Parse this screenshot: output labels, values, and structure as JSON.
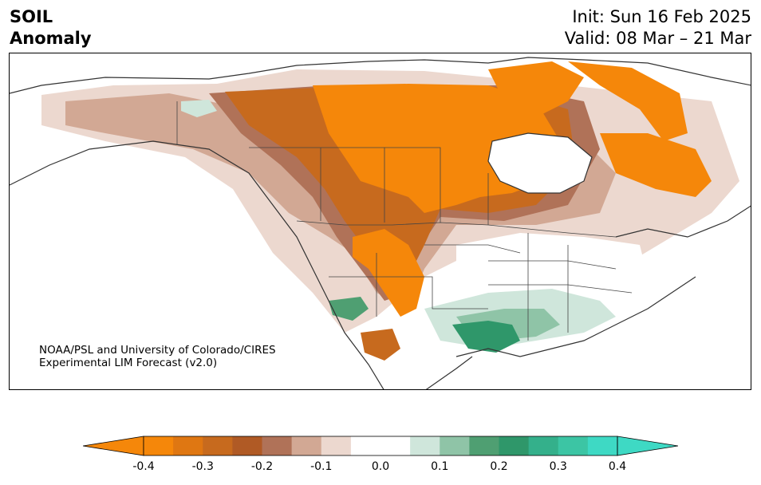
{
  "title": {
    "line1": "SOIL",
    "line2": "Anomaly"
  },
  "dates": {
    "init": "Init: Sun 16 Feb 2025",
    "valid": "Valid: 08 Mar – 21 Mar"
  },
  "credit": {
    "line1": "NOAA/PSL and University of Colorado/CIRES",
    "line2": "Experimental LIM Forecast (v2.0)"
  },
  "colorbar": {
    "ticks": [
      "-0.4",
      "-0.3",
      "-0.2",
      "-0.1",
      "0.0",
      "0.1",
      "0.2",
      "0.3",
      "0.4"
    ],
    "colors": [
      "#f5870a",
      "#df7712",
      "#c76a1e",
      "#b05a25",
      "#b07258",
      "#d2a894",
      "#ecd8cf",
      "#ffffff",
      "#ffffff",
      "#cfe6db",
      "#8fc4a7",
      "#4f9f72",
      "#2f976a",
      "#34b08b",
      "#3cc5a4",
      "#3ed9c4"
    ],
    "under_color": "#f5870a",
    "over_color": "#3ed9c4"
  },
  "map": {
    "region": "North America",
    "palette": {
      "strong_dry": "#f5870a",
      "dry": "#c76a1e",
      "mod_dry": "#b07258",
      "light_dry": "#d2a894",
      "faint_dry": "#ecd8cf",
      "light_wet": "#cfe6db",
      "mod_wet": "#8fc4a7",
      "wet": "#4f9f72",
      "strong_wet": "#2f976a"
    }
  }
}
